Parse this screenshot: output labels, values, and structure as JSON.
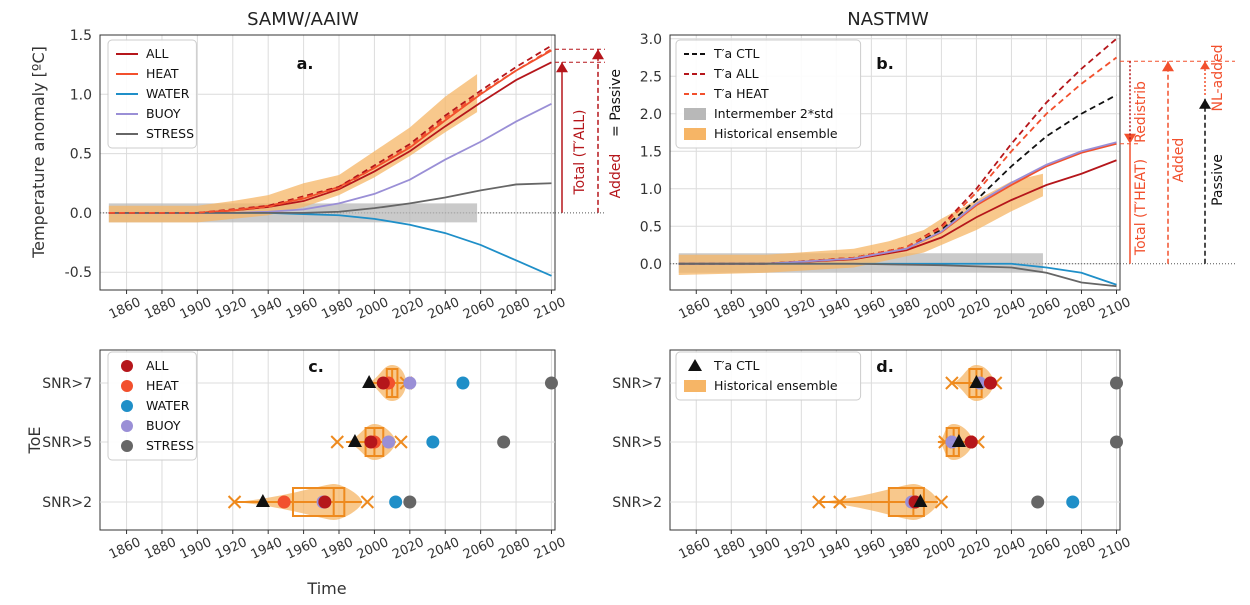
{
  "colors": {
    "ALL": "#b5161b",
    "HEAT": "#f2502d",
    "WATER": "#1f8fc8",
    "BUOY": "#9a8fd6",
    "STRESS": "#666666",
    "CTL": "#111111",
    "ensemble": "#f6b566",
    "intermember": "#b8b8b8"
  },
  "chart_data": [
    {
      "panel": "a.",
      "type": "line",
      "title": "SAMW/AAIW",
      "xlabel": "",
      "ylabel": "Temperature anomaly [ºC]",
      "xlim": [
        1845,
        2102
      ],
      "ylim": [
        -0.65,
        1.5
      ],
      "xticks": [
        1860,
        1880,
        1900,
        1920,
        1940,
        1960,
        1980,
        2000,
        2020,
        2040,
        2060,
        2080,
        2100
      ],
      "yticks": [
        -0.5,
        0.0,
        0.5,
        1.0,
        1.5
      ],
      "grid": true,
      "legend": [
        "ALL",
        "HEAT",
        "WATER",
        "BUOY",
        "STRESS"
      ],
      "legend_position": "top-left",
      "series": [
        {
          "name": "ALL",
          "color": "#b5161b",
          "x": [
            1850,
            1880,
            1900,
            1920,
            1940,
            1960,
            1980,
            2000,
            2020,
            2040,
            2060,
            2080,
            2100
          ],
          "y": [
            0.0,
            0.0,
            0.0,
            0.02,
            0.05,
            0.1,
            0.2,
            0.35,
            0.52,
            0.73,
            0.93,
            1.12,
            1.27
          ]
        },
        {
          "name": "HEAT",
          "color": "#f2502d",
          "x": [
            1850,
            1880,
            1900,
            1920,
            1940,
            1960,
            1980,
            2000,
            2020,
            2040,
            2060,
            2080,
            2100
          ],
          "y": [
            0.0,
            0.0,
            0.0,
            0.02,
            0.06,
            0.12,
            0.22,
            0.38,
            0.55,
            0.78,
            1.0,
            1.2,
            1.37
          ]
        },
        {
          "name": "WATER",
          "color": "#1f8fc8",
          "x": [
            1850,
            1880,
            1900,
            1920,
            1940,
            1960,
            1980,
            2000,
            2020,
            2040,
            2060,
            2080,
            2100
          ],
          "y": [
            0.0,
            0.0,
            0.0,
            0.0,
            0.0,
            -0.01,
            -0.02,
            -0.05,
            -0.1,
            -0.17,
            -0.27,
            -0.4,
            -0.53
          ]
        },
        {
          "name": "BUOY",
          "color": "#9a8fd6",
          "x": [
            1850,
            1880,
            1900,
            1920,
            1940,
            1960,
            1980,
            2000,
            2020,
            2040,
            2060,
            2080,
            2100
          ],
          "y": [
            0.0,
            0.0,
            0.0,
            0.0,
            0.01,
            0.03,
            0.08,
            0.16,
            0.28,
            0.45,
            0.6,
            0.77,
            0.92
          ]
        },
        {
          "name": "STRESS",
          "color": "#666666",
          "x": [
            1850,
            1880,
            1900,
            1920,
            1940,
            1960,
            1980,
            2000,
            2020,
            2040,
            2060,
            2080,
            2100
          ],
          "y": [
            0.0,
            0.0,
            0.0,
            0.0,
            0.0,
            0.0,
            0.01,
            0.04,
            0.08,
            0.13,
            0.19,
            0.24,
            0.25
          ]
        },
        {
          "name": "",
          "color": "#b5161b",
          "dashed": true,
          "x": [
            1850,
            1900,
            1940,
            1980,
            2000,
            2020,
            2040,
            2060,
            2080,
            2100
          ],
          "y": [
            0.0,
            0.0,
            0.06,
            0.22,
            0.4,
            0.58,
            0.82,
            1.03,
            1.23,
            1.41
          ]
        },
        {
          "name": "",
          "color": "#f2502d",
          "dashed": true,
          "x": [
            1850,
            1900,
            1940,
            1980,
            2000,
            2020,
            2040,
            2060,
            2080,
            2100
          ],
          "y": [
            0.0,
            0.0,
            0.05,
            0.21,
            0.38,
            0.56,
            0.8,
            1.01,
            1.2,
            1.38
          ]
        }
      ],
      "bands": [
        {
          "name": "",
          "color": "#b8b8b8",
          "x": [
            1850,
            1900,
            1950,
            2000,
            2058
          ],
          "lo": [
            -0.08,
            -0.08,
            -0.08,
            -0.08,
            -0.08
          ],
          "hi": [
            0.08,
            0.08,
            0.08,
            0.08,
            0.08
          ]
        },
        {
          "name": "",
          "color": "#f6b566",
          "x": [
            1850,
            1900,
            1920,
            1940,
            1960,
            1980,
            2000,
            2020,
            2040,
            2058
          ],
          "lo": [
            -0.08,
            -0.08,
            -0.05,
            -0.02,
            0.05,
            0.15,
            0.3,
            0.48,
            0.68,
            0.85
          ],
          "hi": [
            0.06,
            0.06,
            0.1,
            0.15,
            0.25,
            0.32,
            0.52,
            0.72,
            0.98,
            1.17
          ]
        }
      ],
      "annotations": {
        "total": "Total (T′ALL)",
        "added": "Added",
        "eq_passive": "= Passive"
      }
    },
    {
      "panel": "b.",
      "type": "line",
      "title": "NASTMW",
      "xlabel": "",
      "ylabel": "",
      "xlim": [
        1845,
        2102
      ],
      "ylim": [
        -0.35,
        3.05
      ],
      "xticks": [
        1860,
        1880,
        1900,
        1920,
        1940,
        1960,
        1980,
        2000,
        2020,
        2040,
        2060,
        2080,
        2100
      ],
      "yticks": [
        0.0,
        0.5,
        1.0,
        1.5,
        2.0,
        2.5,
        3.0
      ],
      "grid": true,
      "legend": [
        "T′a CTL",
        "T′a ALL",
        "T′a HEAT",
        "Intermember 2*std",
        "Historical ensemble"
      ],
      "legend_position": "top-left",
      "series": [
        {
          "name": "T′a CTL",
          "color": "#111111",
          "dashed": true,
          "x": [
            1850,
            1900,
            1950,
            1980,
            2000,
            2020,
            2040,
            2060,
            2080,
            2100
          ],
          "y": [
            0.0,
            0.0,
            0.08,
            0.22,
            0.45,
            0.85,
            1.3,
            1.7,
            2.0,
            2.25
          ]
        },
        {
          "name": "T′a ALL",
          "color": "#b5161b",
          "dashed": true,
          "x": [
            1850,
            1900,
            1950,
            1980,
            2000,
            2020,
            2040,
            2060,
            2080,
            2100
          ],
          "y": [
            0.0,
            0.0,
            0.08,
            0.22,
            0.5,
            1.0,
            1.6,
            2.15,
            2.6,
            3.0
          ]
        },
        {
          "name": "T′a HEAT",
          "color": "#f2502d",
          "dashed": true,
          "x": [
            1850,
            1900,
            1950,
            1980,
            2000,
            2020,
            2040,
            2060,
            2080,
            2100
          ],
          "y": [
            0.0,
            0.0,
            0.08,
            0.22,
            0.48,
            0.95,
            1.5,
            2.0,
            2.4,
            2.75
          ]
        },
        {
          "name": "",
          "color": "#b5161b",
          "x": [
            1850,
            1900,
            1950,
            1980,
            2000,
            2020,
            2040,
            2060,
            2080,
            2100
          ],
          "y": [
            0.0,
            0.0,
            0.06,
            0.18,
            0.35,
            0.62,
            0.85,
            1.05,
            1.2,
            1.38
          ]
        },
        {
          "name": "",
          "color": "#f2502d",
          "x": [
            1850,
            1900,
            1950,
            1980,
            2000,
            2020,
            2040,
            2060,
            2080,
            2100
          ],
          "y": [
            0.0,
            0.0,
            0.07,
            0.2,
            0.42,
            0.78,
            1.05,
            1.3,
            1.48,
            1.6
          ]
        },
        {
          "name": "",
          "color": "#9a8fd6",
          "x": [
            1850,
            1900,
            1950,
            1980,
            2000,
            2020,
            2040,
            2060,
            2080,
            2100
          ],
          "y": [
            0.0,
            0.0,
            0.07,
            0.2,
            0.43,
            0.8,
            1.08,
            1.32,
            1.5,
            1.62
          ]
        },
        {
          "name": "",
          "color": "#1f8fc8",
          "x": [
            1850,
            1900,
            1950,
            2000,
            2040,
            2060,
            2080,
            2100
          ],
          "y": [
            0.0,
            0.0,
            0.0,
            0.0,
            0.0,
            -0.05,
            -0.12,
            -0.28
          ]
        },
        {
          "name": "",
          "color": "#666666",
          "x": [
            1850,
            1900,
            1950,
            2000,
            2040,
            2060,
            2080,
            2100
          ],
          "y": [
            0.0,
            0.0,
            0.0,
            -0.02,
            -0.05,
            -0.12,
            -0.25,
            -0.3
          ]
        }
      ],
      "bands": [
        {
          "name": "Intermember 2*std",
          "color": "#b8b8b8",
          "x": [
            1850,
            1900,
            1950,
            2000,
            2058
          ],
          "lo": [
            -0.12,
            -0.12,
            -0.12,
            -0.12,
            -0.12
          ],
          "hi": [
            0.14,
            0.14,
            0.14,
            0.14,
            0.14
          ]
        },
        {
          "name": "Historical ensemble",
          "color": "#f6b566",
          "x": [
            1850,
            1900,
            1950,
            1970,
            1990,
            2000,
            2020,
            2040,
            2058
          ],
          "lo": [
            -0.15,
            -0.12,
            -0.05,
            0.05,
            0.15,
            0.25,
            0.45,
            0.7,
            0.9
          ],
          "hi": [
            0.12,
            0.12,
            0.2,
            0.3,
            0.45,
            0.6,
            0.85,
            1.1,
            1.2
          ]
        }
      ],
      "annotations": {
        "total": "Total (T′HEAT)",
        "redistrib": "Redistrib",
        "added": "Added",
        "passive": "Passive",
        "nl_added": "NL-added"
      }
    },
    {
      "panel": "c.",
      "type": "scatter",
      "title": "",
      "xlabel": "Time",
      "ylabel": "ToE",
      "xlim": [
        1845,
        2102
      ],
      "categories": [
        "SNR>2",
        "SNR>5",
        "SNR>7"
      ],
      "xticks": [
        1860,
        1880,
        1900,
        1920,
        1940,
        1960,
        1980,
        2000,
        2020,
        2040,
        2060,
        2080,
        2100
      ],
      "grid": true,
      "legend": [
        "ALL",
        "HEAT",
        "WATER",
        "BUOY",
        "STRESS"
      ],
      "legend_position": "top-left",
      "points": {
        "SNR>7": {
          "ALL": 2005,
          "HEAT": 2008,
          "WATER": 2050,
          "BUOY": 2020,
          "STRESS": 2100,
          "CTL": 1997
        },
        "SNR>5": {
          "ALL": 1998,
          "HEAT": 2000,
          "WATER": 2033,
          "BUOY": 2008,
          "STRESS": 2073,
          "CTL": 1989
        },
        "SNR>2": {
          "ALL": 1972,
          "HEAT": 1949,
          "WATER": 2012,
          "BUOY": 1971,
          "STRESS": 2020,
          "CTL": 1937
        }
      },
      "ensemble": {
        "SNR>7": {
          "min": 1996,
          "q1": 2007,
          "median": 2010,
          "q3": 2013,
          "max": 2018,
          "outliers": [
            2018
          ]
        },
        "SNR>5": {
          "min": 1984,
          "q1": 1995,
          "median": 2000,
          "q3": 2005,
          "max": 2012,
          "outliers": [
            1979,
            2015
          ]
        },
        "SNR>2": {
          "min": 1921,
          "q1": 1954,
          "median": 1977,
          "q3": 1983,
          "max": 1993,
          "outliers": [
            1921,
            1996
          ]
        }
      }
    },
    {
      "panel": "d.",
      "type": "scatter",
      "title": "",
      "xlabel": "",
      "ylabel": "",
      "xlim": [
        1845,
        2102
      ],
      "categories": [
        "SNR>2",
        "SNR>5",
        "SNR>7"
      ],
      "xticks": [
        1860,
        1880,
        1900,
        1920,
        1940,
        1960,
        1980,
        2000,
        2020,
        2040,
        2060,
        2080,
        2100
      ],
      "grid": true,
      "legend": [
        "T′a CTL",
        "Historical ensemble"
      ],
      "legend_position": "top-left",
      "points": {
        "SNR>7": {
          "ALL": 2028,
          "HEAT": 2028,
          "BUOY": 2022,
          "STRESS": 2100,
          "CTL": 2020
        },
        "SNR>5": {
          "ALL": 2017,
          "HEAT": 2017,
          "BUOY": 2006,
          "STRESS": 2100,
          "CTL": 2010
        },
        "SNR>2": {
          "ALL": 1985,
          "HEAT": 1985,
          "BUOY": 1983,
          "WATER": 2075,
          "STRESS": 2055,
          "CTL": 1988
        }
      },
      "ensemble": {
        "SNR>7": {
          "min": 2006,
          "q1": 2016,
          "median": 2020,
          "q3": 2023,
          "max": 2030,
          "outliers": [
            2006,
            2031
          ]
        },
        "SNR>5": {
          "min": 1998,
          "q1": 2003,
          "median": 2007,
          "q3": 2010,
          "max": 2018,
          "outliers": [
            2002,
            2021
          ]
        },
        "SNR>2": {
          "min": 1930,
          "q1": 1970,
          "median": 1984,
          "q3": 1990,
          "max": 1998,
          "outliers": [
            1930,
            1942,
            2000
          ]
        }
      }
    }
  ]
}
